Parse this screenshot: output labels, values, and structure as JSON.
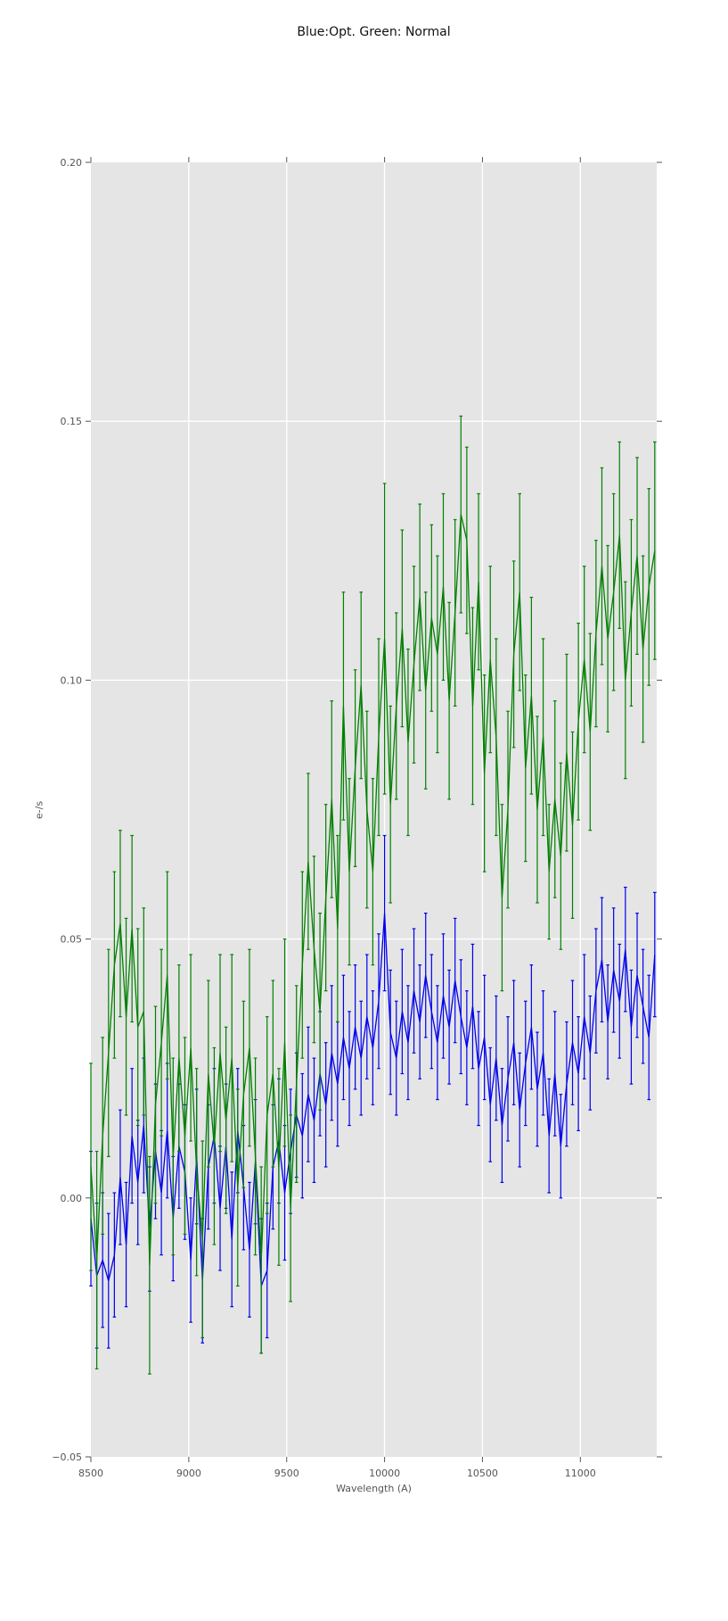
{
  "chart_data": {
    "type": "line",
    "title": "Blue:Opt. Green: Normal",
    "xlabel": "Wavelength (A)",
    "ylabel": "e-/s",
    "xlim": [
      8500,
      11390
    ],
    "ylim": [
      -0.05,
      0.2
    ],
    "grid": true,
    "legend": "none",
    "background": "#e5e5e5",
    "gridline_color": "#ffffff",
    "tick_color": "#555555",
    "title_color": "#111111",
    "x_ticks": [
      8500,
      9000,
      9500,
      10000,
      10500,
      11000
    ],
    "y_ticks": [
      -0.05,
      0.0,
      0.05,
      0.1,
      0.15,
      0.2
    ],
    "y_tick_labels": [
      "−0.05",
      "0.00",
      "0.05",
      "0.10",
      "0.15",
      "0.20"
    ],
    "x_start": 8500,
    "x_step": 30,
    "series": [
      {
        "name": "Opt",
        "color": "#0000ee",
        "y": [
          -0.004,
          -0.015,
          -0.012,
          -0.016,
          -0.011,
          0.004,
          -0.009,
          0.012,
          0.003,
          0.014,
          -0.006,
          0.009,
          0.001,
          0.013,
          -0.004,
          0.01,
          0.005,
          -0.012,
          0.008,
          -0.016,
          0.006,
          0.012,
          -0.002,
          0.01,
          -0.008,
          0.013,
          0.002,
          -0.01,
          0.007,
          -0.017,
          -0.014,
          0.006,
          0.011,
          0.001,
          0.009,
          0.016,
          0.012,
          0.02,
          0.015,
          0.024,
          0.018,
          0.028,
          0.022,
          0.031,
          0.025,
          0.033,
          0.027,
          0.035,
          0.029,
          0.038,
          0.055,
          0.032,
          0.027,
          0.036,
          0.03,
          0.04,
          0.034,
          0.043,
          0.036,
          0.03,
          0.039,
          0.033,
          0.042,
          0.035,
          0.029,
          0.037,
          0.025,
          0.031,
          0.018,
          0.027,
          0.014,
          0.023,
          0.03,
          0.017,
          0.026,
          0.033,
          0.021,
          0.028,
          0.012,
          0.024,
          0.01,
          0.022,
          0.03,
          0.024,
          0.035,
          0.028,
          0.04,
          0.046,
          0.034,
          0.044,
          0.038,
          0.048,
          0.033,
          0.043,
          0.037,
          0.031,
          0.047
        ],
        "err": [
          0.013,
          0.014,
          0.013,
          0.013,
          0.012,
          0.013,
          0.012,
          0.013,
          0.012,
          0.013,
          0.012,
          0.013,
          0.012,
          0.013,
          0.012,
          0.012,
          0.013,
          0.012,
          0.013,
          0.012,
          0.012,
          0.013,
          0.012,
          0.012,
          0.013,
          0.012,
          0.012,
          0.013,
          0.012,
          0.013,
          0.013,
          0.012,
          0.012,
          0.013,
          0.012,
          0.012,
          0.012,
          0.013,
          0.012,
          0.012,
          0.012,
          0.013,
          0.012,
          0.012,
          0.011,
          0.012,
          0.011,
          0.012,
          0.011,
          0.013,
          0.015,
          0.012,
          0.011,
          0.012,
          0.011,
          0.012,
          0.011,
          0.012,
          0.011,
          0.011,
          0.012,
          0.011,
          0.012,
          0.011,
          0.011,
          0.012,
          0.011,
          0.012,
          0.011,
          0.012,
          0.011,
          0.012,
          0.012,
          0.011,
          0.012,
          0.012,
          0.011,
          0.012,
          0.011,
          0.012,
          0.01,
          0.012,
          0.012,
          0.011,
          0.012,
          0.011,
          0.012,
          0.012,
          0.011,
          0.012,
          0.011,
          0.012,
          0.011,
          0.012,
          0.011,
          0.012,
          0.012
        ]
      },
      {
        "name": "Normal",
        "color": "#008000",
        "y": [
          0.006,
          -0.012,
          0.012,
          0.028,
          0.045,
          0.053,
          0.035,
          0.052,
          0.033,
          0.036,
          -0.013,
          0.018,
          0.03,
          0.043,
          0.008,
          0.027,
          0.012,
          0.029,
          0.005,
          -0.008,
          0.024,
          0.01,
          0.028,
          0.015,
          0.027,
          0.002,
          0.02,
          0.029,
          0.008,
          -0.012,
          0.016,
          0.024,
          0.006,
          0.03,
          -0.002,
          0.022,
          0.045,
          0.065,
          0.048,
          0.036,
          0.058,
          0.077,
          0.052,
          0.095,
          0.063,
          0.083,
          0.099,
          0.075,
          0.063,
          0.089,
          0.108,
          0.076,
          0.095,
          0.11,
          0.088,
          0.103,
          0.116,
          0.098,
          0.112,
          0.105,
          0.118,
          0.096,
          0.113,
          0.132,
          0.127,
          0.095,
          0.119,
          0.082,
          0.104,
          0.089,
          0.058,
          0.075,
          0.105,
          0.117,
          0.083,
          0.097,
          0.075,
          0.089,
          0.063,
          0.077,
          0.066,
          0.086,
          0.072,
          0.092,
          0.104,
          0.09,
          0.109,
          0.122,
          0.108,
          0.117,
          0.128,
          0.1,
          0.113,
          0.124,
          0.106,
          0.118,
          0.125
        ],
        "err": [
          0.02,
          0.021,
          0.019,
          0.02,
          0.018,
          0.018,
          0.019,
          0.018,
          0.019,
          0.02,
          0.021,
          0.019,
          0.018,
          0.02,
          0.019,
          0.018,
          0.019,
          0.018,
          0.02,
          0.019,
          0.018,
          0.019,
          0.019,
          0.018,
          0.02,
          0.019,
          0.018,
          0.019,
          0.019,
          0.018,
          0.019,
          0.018,
          0.019,
          0.02,
          0.018,
          0.019,
          0.018,
          0.017,
          0.018,
          0.019,
          0.018,
          0.019,
          0.018,
          0.022,
          0.018,
          0.019,
          0.018,
          0.019,
          0.018,
          0.019,
          0.03,
          0.019,
          0.018,
          0.019,
          0.018,
          0.019,
          0.018,
          0.019,
          0.018,
          0.019,
          0.018,
          0.019,
          0.018,
          0.019,
          0.018,
          0.019,
          0.017,
          0.019,
          0.018,
          0.019,
          0.018,
          0.019,
          0.018,
          0.019,
          0.018,
          0.019,
          0.018,
          0.019,
          0.013,
          0.019,
          0.018,
          0.019,
          0.018,
          0.019,
          0.018,
          0.019,
          0.018,
          0.019,
          0.018,
          0.019,
          0.018,
          0.019,
          0.018,
          0.019,
          0.018,
          0.019,
          0.021
        ]
      }
    ]
  }
}
